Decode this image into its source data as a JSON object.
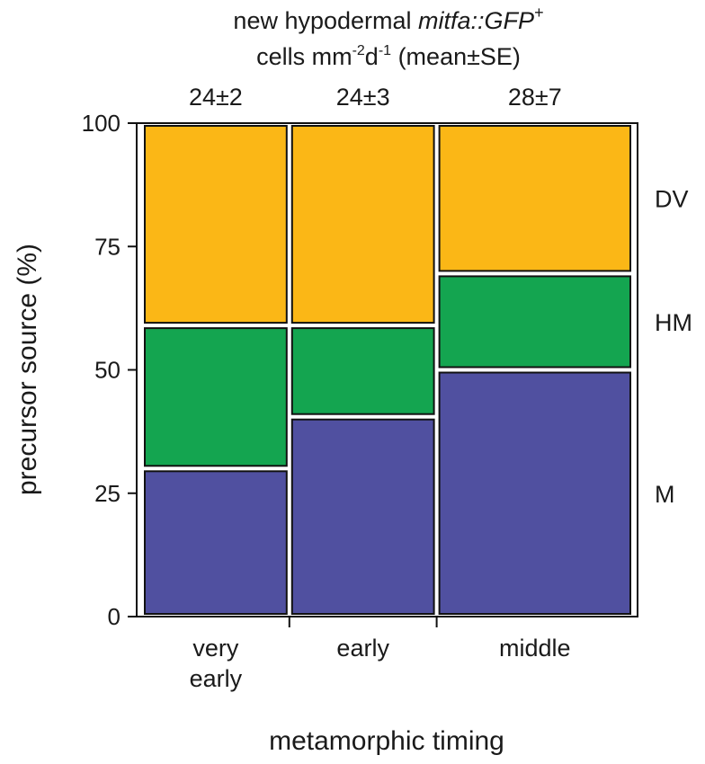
{
  "chart_data": {
    "type": "mosaic",
    "title_line1_prefix": "new hypodermal ",
    "title_line1_italic": "mitfa::GFP",
    "title_line1_sup": "+",
    "title_line2_a": "cells mm",
    "title_line2_sup1": "-2",
    "title_line2_b": "d",
    "title_line2_sup2": "-1",
    "title_line2_c": " (mean±SE)",
    "ylabel": "precursor source (%)",
    "xlabel": "metamorphic timing",
    "ylim": [
      0,
      100
    ],
    "yticks": [
      "0",
      "25",
      "50",
      "75",
      "100"
    ],
    "categories": [
      {
        "label_lines": [
          "very",
          "early"
        ],
        "count": "24±2",
        "width_fraction": 0.3
      },
      {
        "label_lines": [
          "early"
        ],
        "count": "24±3",
        "width_fraction": 0.3
      },
      {
        "label_lines": [
          "middle"
        ],
        "count": "28±7",
        "width_fraction": 0.4
      }
    ],
    "series": [
      {
        "name": "M",
        "color": "#5050a0",
        "values": [
          30,
          40.5,
          50
        ]
      },
      {
        "name": "HM",
        "color": "#14a550",
        "values": [
          29,
          18.5,
          19.5
        ]
      },
      {
        "name": "DV",
        "color": "#fbb716",
        "values": [
          41,
          41,
          30.5
        ]
      }
    ]
  }
}
